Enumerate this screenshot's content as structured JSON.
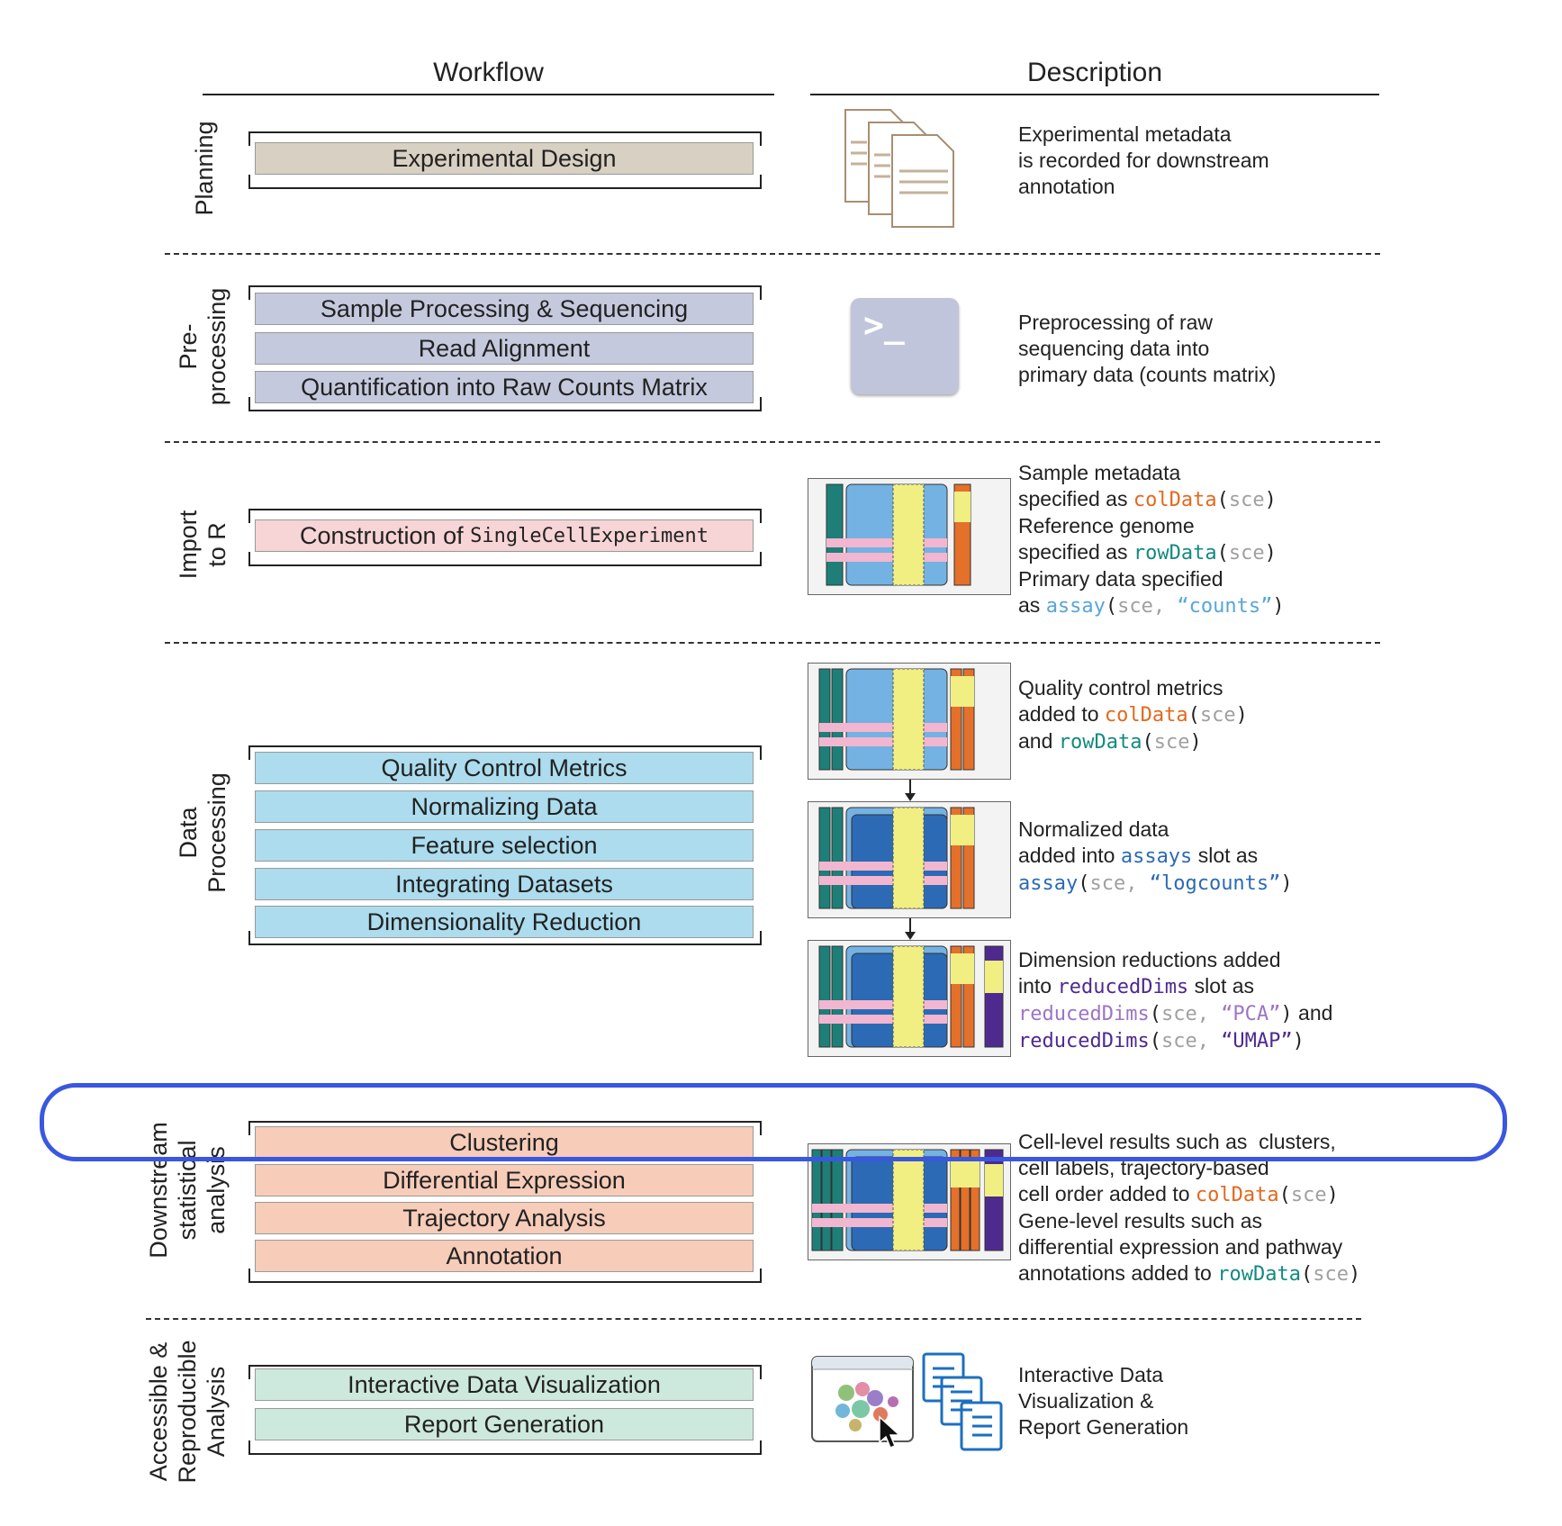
{
  "headers": {
    "workflow": "Workflow",
    "description": "Description"
  },
  "stages": {
    "planning": {
      "label": "Planning",
      "steps": [
        "Experimental Design"
      ],
      "desc": [
        "Experimental metadata",
        "is recorded for downstream",
        "annotation"
      ]
    },
    "preprocessing": {
      "label_line1": "Pre-",
      "label_line2": "processing",
      "steps": [
        "Sample Processing & Sequencing",
        "Read Alignment",
        "Quantification into Raw Counts Matrix"
      ],
      "desc": [
        "Preprocessing of raw",
        "sequencing data into",
        "primary data (counts matrix)"
      ],
      "terminal_glyph": ">_"
    },
    "import": {
      "label_line1": "Import",
      "label_line2": "to R",
      "step_prefix": "Construction of ",
      "step_code": "SingleCellExperiment",
      "desc": {
        "l1": "Sample metadata",
        "l2_pre": "specified as ",
        "l2_fn": "colData",
        "l2_open": "(",
        "l2_arg": "sce",
        "l2_close": ")",
        "l3": "Reference genome",
        "l4_pre": "specified as ",
        "l4_fn": "rowData",
        "l4_open": "(",
        "l4_arg": "sce",
        "l4_close": ")",
        "l5": "Primary data specified",
        "l6_pre": "as ",
        "l6_fn": "assay",
        "l6_open": "(",
        "l6_arg": "sce, ",
        "l6_str": "“counts”",
        "l6_close": ")"
      }
    },
    "processing": {
      "label_line1": "Data",
      "label_line2": "Processing",
      "steps": [
        "Quality Control Metrics",
        "Normalizing Data",
        "Feature selection",
        "Integrating Datasets",
        "Dimensionality Reduction"
      ],
      "desc1": {
        "l1": "Quality control metrics",
        "l2_pre": "added to ",
        "l2_fn": "colData",
        "l2_open": "(",
        "l2_arg": "sce",
        "l2_close": ")",
        "l3_pre": "and ",
        "l3_fn": "rowData",
        "l3_open": "(",
        "l3_arg": "sce",
        "l3_close": ")"
      },
      "desc2": {
        "l1": "Normalized data",
        "l2_pre": "added into ",
        "l2_code": "assays",
        "l2_post": " slot as",
        "l3_fn": "assay",
        "l3_open": "(",
        "l3_arg": "sce, ",
        "l3_str": "“logcounts”",
        "l3_close": ")"
      },
      "desc3": {
        "l1": "Dimension reductions added",
        "l2_pre": "into ",
        "l2_code": "reducedDims",
        "l2_post": " slot as",
        "l3_fn": "reducedDims",
        "l3_open": "(",
        "l3_arg": "sce, ",
        "l3_str": "“PCA”",
        "l3_close": ")",
        "l3_post": " and",
        "l4_fn": "reducedDims",
        "l4_open": "(",
        "l4_arg": "sce, ",
        "l4_str": "“UMAP”",
        "l4_close": ")"
      }
    },
    "downstream": {
      "label_line1": "Downstream",
      "label_line2": "statistical",
      "label_line3": "analysis",
      "steps": [
        "Clustering",
        "Differential Expression",
        "Trajectory Analysis",
        "Annotation"
      ],
      "desc": {
        "l1": "Cell-level results such as  clusters,",
        "l2": "cell labels, trajectory-based",
        "l3_pre": "cell order added to ",
        "l3_fn": "colData",
        "l3_open": "(",
        "l3_arg": "sce",
        "l3_close": ")",
        "l4": "Gene-level results such as",
        "l5": "differential expression and pathway",
        "l6_pre": "annotations added to ",
        "l6_fn": "rowData",
        "l6_open": "(",
        "l6_arg": "sce",
        "l6_close": ")"
      }
    },
    "accessible": {
      "label_line1": "Accessible &",
      "label_line2": "Reproducible",
      "label_line3": "Analysis",
      "steps": [
        "Interactive Data Visualization",
        "Report Generation"
      ],
      "desc": [
        "Interactive Data",
        "Visualization &",
        "Report Generation"
      ]
    }
  },
  "colors": {
    "planning": "#d8d0c3",
    "preprocessing": "#c5c9dd",
    "import": "#f7d4d5",
    "processing": "#acdced",
    "downstream": "#f7ccb9",
    "accessible": "#cde9de",
    "highlight": "#3a57e0"
  },
  "icons": [
    "documents-icon",
    "terminal-icon",
    "sce-matrix-icon",
    "browser-scatter-icon",
    "cursor-icon",
    "report-books-icon"
  ]
}
